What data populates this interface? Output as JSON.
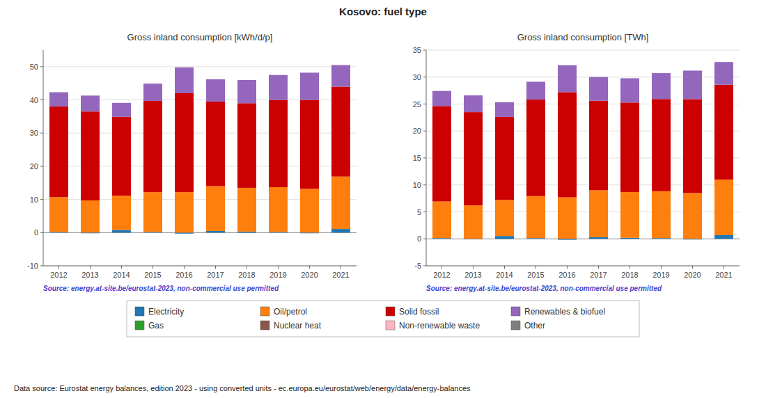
{
  "title": "Kosovo: fuel type",
  "annotations": [
    "Data source: Eurostat energy balances, edition 2023 - using converted units - ec.europa.eu/eurostat/web/energy/data/energy-balances"
  ],
  "chart_data": [
    {
      "type": "bar",
      "stacked": true,
      "grid": true,
      "legend": "bottom",
      "title": "Gross inland consumption [kWh/d/p]",
      "annotations": [
        "Source: energy.at-site.be/eurostat-2023, non-commercial use permitted"
      ],
      "categories": [
        "2012",
        "2013",
        "2014",
        "2015",
        "2016",
        "2017",
        "2018",
        "2019",
        "2020",
        "2021"
      ],
      "ylim": [
        -10,
        55
      ],
      "yticks": [
        -10,
        0,
        10,
        20,
        30,
        40,
        50
      ],
      "series": [
        {
          "name": "Electricity",
          "color": "#1f77b4",
          "values": [
            0.2,
            -0.2,
            0.8,
            0.2,
            -0.3,
            0.5,
            0.3,
            0.2,
            -0.2,
            1.1
          ]
        },
        {
          "name": "Oil/petrol",
          "color": "#ff7f0e",
          "values": [
            10.5,
            9.7,
            10.3,
            12.0,
            12.2,
            13.5,
            13.2,
            13.5,
            13.2,
            15.8
          ]
        },
        {
          "name": "Solid fossil",
          "color": "#cc0000",
          "values": [
            27.3,
            26.8,
            23.8,
            27.5,
            29.8,
            25.5,
            25.5,
            26.3,
            26.8,
            27.1
          ]
        },
        {
          "name": "Renewables & biofuel",
          "color": "#9467bd",
          "values": [
            4.3,
            4.8,
            4.2,
            5.2,
            7.8,
            6.7,
            7.0,
            7.5,
            8.2,
            6.5
          ]
        },
        {
          "name": "Gas",
          "color": "#2ca02c",
          "values": [
            0.0,
            0.0,
            0.0,
            0.0,
            0.0,
            0.0,
            0.0,
            0.0,
            0.0,
            0.0
          ]
        },
        {
          "name": "Nuclear heat",
          "color": "#8c564b",
          "values": [
            0.0,
            0.0,
            0.0,
            0.0,
            0.0,
            0.0,
            0.0,
            0.0,
            0.0,
            0.0
          ]
        },
        {
          "name": "Non-renewable waste",
          "color": "#ffb6c1",
          "values": [
            0.0,
            0.0,
            0.0,
            0.0,
            0.0,
            0.0,
            0.0,
            0.0,
            0.0,
            0.0
          ]
        },
        {
          "name": "Other",
          "color": "#7f7f7f",
          "values": [
            0.0,
            0.0,
            0.0,
            0.0,
            0.0,
            0.0,
            0.0,
            0.0,
            0.0,
            0.0
          ]
        }
      ]
    },
    {
      "type": "bar",
      "stacked": true,
      "grid": true,
      "title": "Gross inland consumption [TWh]",
      "annotations": [
        "Source: energy.at-site.be/eurostat-2023, non-commercial use permitted"
      ],
      "categories": [
        "2012",
        "2013",
        "2014",
        "2015",
        "2016",
        "2017",
        "2018",
        "2019",
        "2020",
        "2021"
      ],
      "ylim": [
        -5,
        35
      ],
      "yticks": [
        -5,
        0,
        5,
        10,
        15,
        20,
        25,
        30,
        35
      ],
      "series": [
        {
          "name": "Electricity",
          "color": "#1f77b4",
          "values": [
            0.13,
            -0.1,
            0.52,
            0.13,
            -0.18,
            0.31,
            0.18,
            0.13,
            -0.13,
            0.68
          ]
        },
        {
          "name": "Oil/petrol",
          "color": "#ff7f0e",
          "values": [
            6.8,
            6.2,
            6.7,
            7.8,
            7.7,
            8.7,
            8.5,
            8.7,
            8.5,
            10.3
          ]
        },
        {
          "name": "Solid fossil",
          "color": "#cc0000",
          "values": [
            17.7,
            17.3,
            15.4,
            17.9,
            19.5,
            16.6,
            16.6,
            17.1,
            17.4,
            17.6
          ]
        },
        {
          "name": "Renewables & biofuel",
          "color": "#9467bd",
          "values": [
            2.8,
            3.1,
            2.7,
            3.3,
            5.0,
            4.4,
            4.5,
            4.8,
            5.3,
            4.2
          ]
        },
        {
          "name": "Gas",
          "color": "#2ca02c",
          "values": [
            0.0,
            0.0,
            0.0,
            0.0,
            0.0,
            0.0,
            0.0,
            0.0,
            0.0,
            0.0
          ]
        },
        {
          "name": "Nuclear heat",
          "color": "#8c564b",
          "values": [
            0.0,
            0.0,
            0.0,
            0.0,
            0.0,
            0.0,
            0.0,
            0.0,
            0.0,
            0.0
          ]
        },
        {
          "name": "Non-renewable waste",
          "color": "#ffb6c1",
          "values": [
            0.0,
            0.0,
            0.0,
            0.0,
            0.0,
            0.0,
            0.0,
            0.0,
            0.0,
            0.0
          ]
        },
        {
          "name": "Other",
          "color": "#7f7f7f",
          "values": [
            0.0,
            0.0,
            0.0,
            0.0,
            0.0,
            0.0,
            0.0,
            0.0,
            0.0,
            0.0
          ]
        }
      ]
    }
  ]
}
